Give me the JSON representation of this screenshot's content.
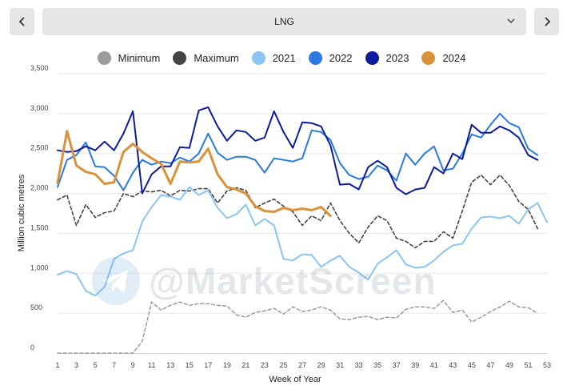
{
  "nav": {
    "prev_icon": "chevron-left-icon",
    "next_icon": "chevron-right-icon"
  },
  "selector": {
    "value": "LNG",
    "icon": "chevron-down-icon"
  },
  "watermark": {
    "text": "@MarketScreen",
    "icon": "telegram-icon"
  },
  "colors": {
    "Minimum": "#9b9b9b",
    "Maximum": "#444444",
    "2021": "#8cc4f2",
    "2022": "#2a7ae2",
    "2023": "#0d1b9c",
    "2024": "#d9913a"
  },
  "chart_data": {
    "type": "line",
    "xlabel": "Week of Year",
    "ylabel": "Million cubic metres",
    "xlim": [
      1,
      53
    ],
    "ylim": [
      0,
      3500
    ],
    "x_ticks": [
      1,
      3,
      5,
      7,
      9,
      11,
      13,
      15,
      17,
      19,
      21,
      23,
      25,
      27,
      29,
      31,
      33,
      35,
      37,
      39,
      41,
      43,
      45,
      47,
      49,
      51,
      53
    ],
    "y_ticks": [
      0,
      500,
      1000,
      1500,
      2000,
      2500,
      3000,
      3500
    ],
    "y_tick_labels": [
      "0",
      "500",
      "1,000",
      "1,500",
      "2,000",
      "2,500",
      "3,000",
      "3,500"
    ],
    "grid": "horizontal",
    "legend_position": "top-center",
    "series": [
      {
        "name": "Minimum",
        "style": "dashed",
        "x": [
          1,
          2,
          3,
          4,
          5,
          6,
          7,
          8,
          9,
          10,
          11,
          12,
          13,
          14,
          15,
          16,
          17,
          18,
          19,
          20,
          21,
          22,
          23,
          24,
          25,
          26,
          27,
          28,
          29,
          30,
          31,
          32,
          33,
          34,
          35,
          36,
          37,
          38,
          39,
          40,
          41,
          42,
          43,
          44,
          45,
          46,
          47,
          48,
          49,
          50,
          51,
          52
        ],
        "values": [
          0,
          0,
          0,
          0,
          0,
          0,
          0,
          0,
          0,
          150,
          640,
          540,
          600,
          640,
          600,
          620,
          620,
          600,
          590,
          480,
          450,
          510,
          530,
          560,
          490,
          580,
          520,
          540,
          580,
          540,
          430,
          420,
          450,
          460,
          420,
          450,
          440,
          550,
          580,
          580,
          560,
          660,
          510,
          540,
          390,
          450,
          520,
          580,
          650,
          580,
          570,
          500
        ]
      },
      {
        "name": "Maximum",
        "style": "dashed",
        "x": [
          1,
          2,
          3,
          4,
          5,
          6,
          7,
          8,
          9,
          10,
          11,
          12,
          13,
          14,
          15,
          16,
          17,
          18,
          19,
          20,
          21,
          22,
          23,
          24,
          25,
          26,
          27,
          28,
          29,
          30,
          31,
          32,
          33,
          34,
          35,
          36,
          37,
          38,
          39,
          40,
          41,
          42,
          43,
          44,
          45,
          46,
          47,
          48,
          49,
          50,
          51,
          52
        ],
        "values": [
          1920,
          1980,
          1600,
          1860,
          1700,
          1760,
          1780,
          2000,
          1960,
          2030,
          2020,
          2040,
          1970,
          2040,
          2030,
          2060,
          2060,
          1880,
          2030,
          2070,
          2040,
          1820,
          1880,
          1930,
          1840,
          1770,
          1600,
          1720,
          1660,
          1880,
          1660,
          1500,
          1380,
          1580,
          1720,
          1660,
          1440,
          1400,
          1320,
          1400,
          1400,
          1520,
          1440,
          1780,
          2140,
          2230,
          2110,
          2230,
          2100,
          1900,
          1800,
          1560
        ]
      },
      {
        "name": "2021",
        "x": [
          1,
          2,
          3,
          4,
          5,
          6,
          7,
          8,
          9,
          10,
          11,
          12,
          13,
          14,
          15,
          16,
          17,
          18,
          19,
          20,
          21,
          22,
          23,
          24,
          25,
          26,
          27,
          28,
          29,
          30,
          31,
          32,
          33,
          34,
          35,
          36,
          37,
          38,
          39,
          40,
          41,
          42,
          43,
          44,
          45,
          46,
          47,
          48,
          49,
          50,
          51,
          52,
          53
        ],
        "values": [
          980,
          1030,
          990,
          780,
          720,
          830,
          1180,
          1250,
          1290,
          1650,
          1830,
          1980,
          1960,
          1920,
          2080,
          1980,
          2040,
          1820,
          1690,
          1740,
          1860,
          1600,
          1680,
          1600,
          1180,
          1160,
          1240,
          1230,
          1080,
          1160,
          1220,
          1080,
          1010,
          920,
          1120,
          1200,
          1290,
          1110,
          1070,
          1080,
          1160,
          1270,
          1350,
          1370,
          1560,
          1700,
          1710,
          1690,
          1720,
          1620,
          1800,
          1880,
          1640
        ]
      },
      {
        "name": "2022",
        "x": [
          1,
          2,
          3,
          4,
          5,
          6,
          7,
          8,
          9,
          10,
          11,
          12,
          13,
          14,
          15,
          16,
          17,
          18,
          19,
          20,
          21,
          22,
          23,
          24,
          25,
          26,
          27,
          28,
          29,
          30,
          31,
          32,
          33,
          34,
          35,
          36,
          37,
          38,
          39,
          40,
          41,
          42,
          43,
          44,
          45,
          46,
          47,
          48,
          49,
          50,
          51,
          52
        ],
        "values": [
          2080,
          2420,
          2480,
          2640,
          2340,
          2330,
          2220,
          2040,
          2260,
          2420,
          2360,
          2400,
          2380,
          2450,
          2400,
          2500,
          2750,
          2510,
          2420,
          2460,
          2460,
          2420,
          2260,
          2440,
          2420,
          2400,
          2440,
          2790,
          2770,
          2670,
          2380,
          2230,
          2180,
          2210,
          2350,
          2290,
          2160,
          2500,
          2360,
          2500,
          2590,
          2290,
          2310,
          2500,
          2740,
          2700,
          2860,
          3000,
          2880,
          2830,
          2560,
          2480
        ]
      },
      {
        "name": "2023",
        "x": [
          1,
          2,
          3,
          4,
          5,
          6,
          7,
          8,
          9,
          10,
          11,
          12,
          13,
          14,
          15,
          16,
          17,
          18,
          19,
          20,
          21,
          22,
          23,
          24,
          25,
          26,
          27,
          28,
          29,
          30,
          31,
          32,
          33,
          34,
          35,
          36,
          37,
          38,
          39,
          40,
          41,
          42,
          43,
          44,
          45,
          46,
          47,
          48,
          49,
          50,
          51,
          52
        ],
        "values": [
          2540,
          2520,
          2530,
          2590,
          2540,
          2650,
          2540,
          2750,
          3030,
          2000,
          2240,
          2340,
          2340,
          2580,
          2570,
          3040,
          3080,
          2840,
          2660,
          2790,
          2770,
          2660,
          2700,
          3030,
          2770,
          2570,
          2890,
          2880,
          2840,
          2600,
          2110,
          2120,
          2050,
          2330,
          2410,
          2330,
          2070,
          1990,
          2050,
          2070,
          2330,
          2250,
          2500,
          2430,
          2860,
          2760,
          2760,
          2840,
          2790,
          2700,
          2480,
          2420
        ]
      },
      {
        "name": "2024",
        "x": [
          1,
          2,
          3,
          4,
          5,
          6,
          7,
          8,
          9,
          10,
          11,
          12,
          13,
          14,
          15,
          16,
          17,
          18,
          19,
          20,
          21,
          22,
          23,
          24,
          25,
          26,
          27,
          28,
          29,
          30
        ],
        "values": [
          2130,
          2780,
          2350,
          2270,
          2240,
          2120,
          2140,
          2520,
          2620,
          2520,
          2440,
          2370,
          2120,
          2400,
          2390,
          2400,
          2560,
          2240,
          2080,
          2050,
          2000,
          1840,
          1780,
          1770,
          1820,
          1790,
          1810,
          1790,
          1830,
          1720
        ]
      }
    ]
  }
}
